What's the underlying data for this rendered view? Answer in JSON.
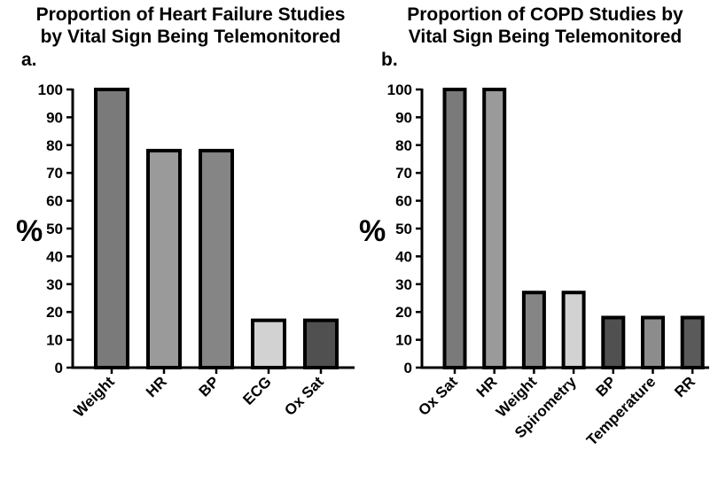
{
  "chart_data": [
    {
      "type": "bar",
      "panel": "a.",
      "title": "Proportion of  Heart Failure Studies\nby Vital Sign Being Telemonitored",
      "title_lines": [
        "Proportion of  Heart Failure Studies",
        "by Vital Sign Being Telemonitored"
      ],
      "ylabel": "%",
      "xlabel": "",
      "ylim": [
        0,
        100
      ],
      "yticks": [
        0,
        10,
        20,
        30,
        40,
        50,
        60,
        70,
        80,
        90,
        100
      ],
      "categories": [
        "Weight",
        "HR",
        "BP",
        "ECG",
        "Ox Sat"
      ],
      "values": [
        100,
        78,
        78,
        17,
        17
      ],
      "colors": [
        "#7a7a7a",
        "#9a9a9a",
        "#858585",
        "#d2d2d2",
        "#505050"
      ],
      "grid": false
    },
    {
      "type": "bar",
      "panel": "b.",
      "title": "Proportion of  COPD Studies by\nVital Sign Being Telemonitored",
      "title_lines": [
        "Proportion of  COPD Studies by",
        "Vital Sign Being Telemonitored"
      ],
      "ylabel": "%",
      "xlabel": "",
      "ylim": [
        0,
        100
      ],
      "yticks": [
        0,
        10,
        20,
        30,
        40,
        50,
        60,
        70,
        80,
        90,
        100
      ],
      "categories": [
        "Ox Sat",
        "HR",
        "Weight",
        "Spirometry",
        "BP",
        "Temperature",
        "RR"
      ],
      "values": [
        100,
        100,
        27,
        27,
        18,
        18,
        18
      ],
      "colors": [
        "#7a7a7a",
        "#9a9a9a",
        "#858585",
        "#d2d2d2",
        "#505050",
        "#8c8c8c",
        "#5a5a5a"
      ],
      "grid": false
    }
  ]
}
